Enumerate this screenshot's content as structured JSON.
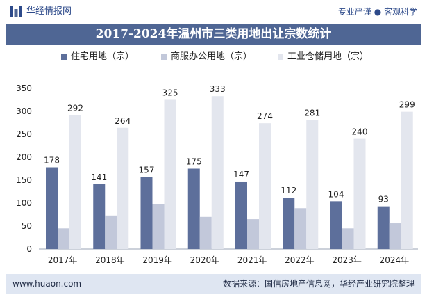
{
  "header": {
    "brand": "华经情报网",
    "slogan": "专业严谨 ● 客观科学",
    "logo_icon": "huajing-logo-icon"
  },
  "footer": {
    "site": "www.huaon.com",
    "source": "数据来源：国信房地产信息网，华经产业研究院整理"
  },
  "colors": {
    "title_bar": "#4f6694",
    "footer_bar": "#dfe6f2",
    "residential": "#5d6f9b",
    "commercial": "#c2c8da",
    "industrial": "#e3e6ee"
  },
  "chart_data": {
    "type": "bar",
    "title": "2017-2024年温州市三类用地出让宗数统计",
    "categories": [
      "2017年",
      "2018年",
      "2019年",
      "2020年",
      "2021年",
      "2022年",
      "2023年",
      "2024年"
    ],
    "series": [
      {
        "name": "住宅用地（宗）",
        "values": [
          178,
          141,
          157,
          175,
          147,
          112,
          104,
          93
        ],
        "color": "#5d6f9b",
        "labeled": true
      },
      {
        "name": "商服办公用地（宗）",
        "values": [
          45,
          73,
          97,
          70,
          65,
          89,
          45,
          56
        ],
        "color": "#c2c8da",
        "labeled": false
      },
      {
        "name": "工业仓储用地（宗）",
        "values": [
          292,
          264,
          325,
          333,
          274,
          281,
          240,
          299
        ],
        "color": "#e3e6ee",
        "labeled": true
      }
    ],
    "ylim": [
      0,
      350
    ],
    "yticks": [
      0,
      50,
      100,
      150,
      200,
      250,
      300,
      350
    ],
    "xlabel": "",
    "ylabel": "",
    "legend_position": "top-center",
    "grid": false
  }
}
